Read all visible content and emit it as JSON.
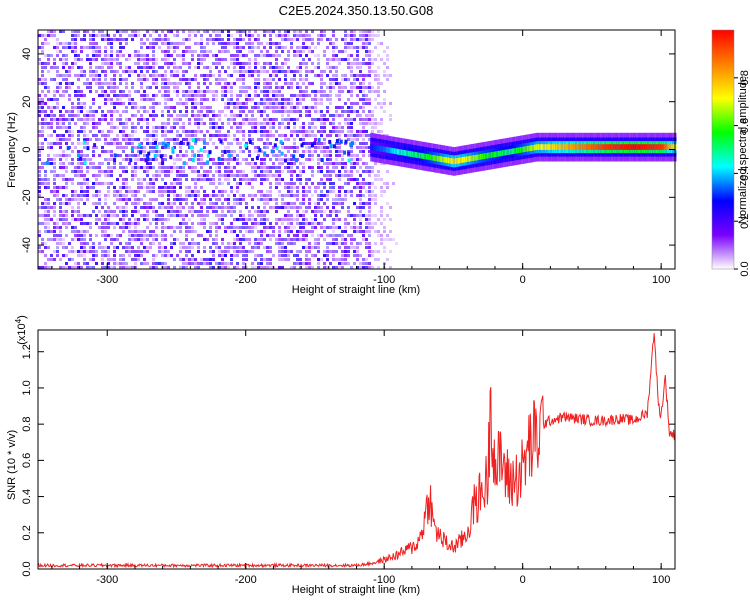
{
  "chart_data": [
    {
      "type": "heatmap",
      "title": "C2E5.2024.350.13.50.G08",
      "xlabel": "Height of straight line (km)",
      "ylabel": "Frequency (Hz)",
      "xlim": [
        -350,
        110
      ],
      "ylim": [
        -50,
        50
      ],
      "xticks": [
        -300,
        -200,
        -100,
        0,
        100
      ],
      "yticks": [
        -40,
        -20,
        0,
        20,
        40
      ],
      "colorbar": {
        "label": "Normalized spectral amplitude",
        "range": [
          0,
          1
        ],
        "ticks": [
          0.0,
          0.2,
          0.4,
          0.6,
          0.8
        ],
        "tick_labels": [
          "0.0",
          "0.2",
          "0.4",
          "0.6",
          "0.8"
        ],
        "colormap": [
          "#ffffff",
          "#7a00ff",
          "#0000ff",
          "#00ffff",
          "#00ff00",
          "#ffff00",
          "#ff8000",
          "#ff0000"
        ]
      },
      "noise_region_km": [
        -350,
        -110
      ],
      "signal_track": {
        "x": [
          -110,
          -100,
          -90,
          -80,
          -70,
          -60,
          -50,
          -40,
          -30,
          -20,
          -10,
          0,
          10,
          20,
          40,
          60,
          80,
          100,
          110
        ],
        "y": [
          1,
          0,
          -1,
          -2,
          -3,
          -4,
          -5,
          -4,
          -3,
          -2,
          -1,
          0,
          1,
          1,
          1,
          1,
          1,
          1,
          1
        ],
        "amplitude": [
          0.3,
          0.35,
          0.45,
          0.5,
          0.55,
          0.65,
          0.75,
          0.7,
          0.6,
          0.55,
          0.5,
          0.6,
          0.7,
          0.75,
          0.85,
          0.95,
          1.0,
          0.95,
          0.7
        ]
      }
    },
    {
      "type": "line",
      "xlabel": "Height of straight line (km)",
      "ylabel": "SNR (10 * v/v)",
      "y_multiplier": "(x10",
      "y_multiplier_exp": "4",
      "y_multiplier_close": ")",
      "xlim": [
        -350,
        110
      ],
      "ylim": [
        0,
        1.32
      ],
      "xticks": [
        -300,
        -200,
        -100,
        0,
        100
      ],
      "yticks": [
        0.0,
        0.2,
        0.4,
        0.6,
        0.8,
        1.0,
        1.2
      ],
      "ytick_labels": [
        "0.0",
        "0.2",
        "0.4",
        "0.6",
        "0.8",
        "1.0",
        "1.2"
      ],
      "color": "#ee2222",
      "x": [
        -350,
        -300,
        -250,
        -200,
        -150,
        -120,
        -110,
        -100,
        -90,
        -80,
        -75,
        -70,
        -67,
        -65,
        -60,
        -55,
        -50,
        -45,
        -40,
        -35,
        -30,
        -25,
        -23,
        -20,
        -15,
        -10,
        -5,
        0,
        5,
        10,
        15,
        20,
        30,
        40,
        50,
        60,
        70,
        80,
        90,
        95,
        98,
        100,
        103,
        106,
        110
      ],
      "y": [
        0.02,
        0.02,
        0.02,
        0.02,
        0.02,
        0.02,
        0.03,
        0.05,
        0.08,
        0.12,
        0.15,
        0.3,
        0.43,
        0.25,
        0.18,
        0.14,
        0.12,
        0.15,
        0.2,
        0.35,
        0.42,
        0.5,
        1.02,
        0.55,
        0.6,
        0.48,
        0.5,
        0.55,
        0.68,
        0.72,
        0.8,
        0.82,
        0.84,
        0.83,
        0.82,
        0.82,
        0.83,
        0.82,
        0.86,
        1.32,
        0.9,
        0.85,
        1.06,
        0.75,
        0.74
      ]
    }
  ]
}
